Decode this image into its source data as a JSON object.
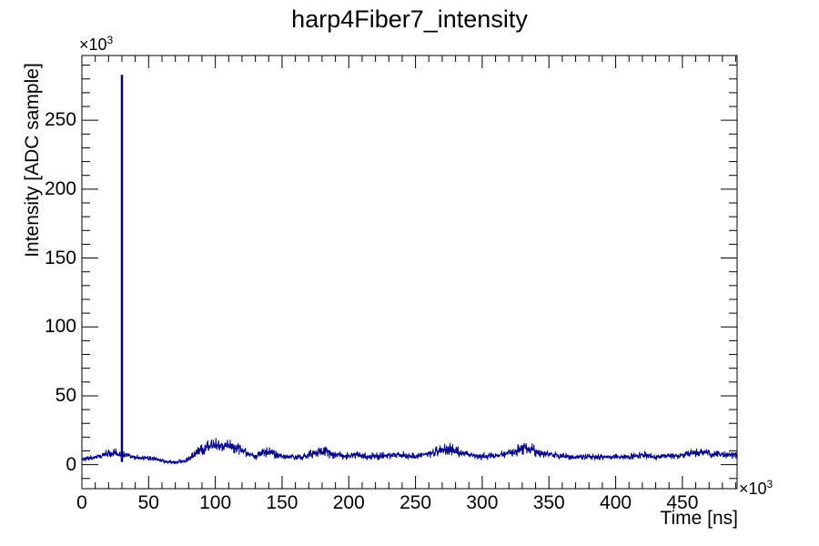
{
  "chart_data": {
    "type": "line",
    "title": "harp4Fiber7_intensity",
    "xlabel": "Time [ns]",
    "ylabel": "Intensity [ADC sample]",
    "axis_multiplier": {
      "base": "×10",
      "exp": "3"
    },
    "x_ticks": [
      0,
      50,
      100,
      150,
      200,
      250,
      300,
      350,
      400,
      450
    ],
    "y_ticks": [
      0,
      50,
      100,
      150,
      200,
      250
    ],
    "x_minor_step": 10,
    "y_minor_step": 10,
    "xlim": [
      0,
      491
    ],
    "ylim": [
      -17.4,
      297
    ],
    "grid": false,
    "legend": false,
    "line_color": "#00008b",
    "frame_color": "#000000",
    "background_color": "#ffffff",
    "series": [
      {
        "name": "harp4Fiber7_intensity",
        "spike": {
          "x": 30,
          "y": 283
        },
        "envelope_x": [
          0,
          10,
          15,
          20,
          25,
          28,
          32,
          38,
          45,
          55,
          62,
          70,
          78,
          85,
          92,
          100,
          110,
          118,
          125,
          130,
          136,
          141,
          147,
          155,
          163,
          170,
          176,
          182,
          188,
          196,
          205,
          213,
          222,
          232,
          240,
          248,
          256,
          263,
          270,
          277,
          284,
          291,
          300,
          310,
          318,
          326,
          333,
          340,
          348,
          357,
          368,
          380,
          392,
          404,
          415,
          422,
          430,
          438,
          448,
          458,
          466,
          474,
          482,
          491
        ],
        "envelope_lo": [
          2,
          3,
          4,
          5,
          5,
          5,
          4,
          3,
          3,
          2,
          1,
          0.5,
          1.5,
          4,
          7,
          8,
          8,
          7,
          4,
          3,
          5,
          5,
          3,
          3,
          3,
          4,
          5,
          5,
          4,
          3,
          4,
          3,
          3,
          4,
          4,
          3,
          4,
          5,
          6,
          6,
          5,
          4,
          3,
          4,
          5,
          6,
          7,
          5,
          4,
          3,
          3,
          3,
          3,
          3,
          4,
          4,
          3,
          4,
          4,
          5,
          5,
          4,
          4,
          4
        ],
        "envelope_hi": [
          6,
          8,
          9,
          12,
          12,
          11,
          10,
          8,
          7,
          6,
          4,
          3,
          5,
          11,
          17,
          20,
          19,
          17,
          10,
          8,
          13,
          13,
          9,
          8,
          8,
          10,
          14,
          15,
          12,
          9,
          10,
          9,
          9,
          10,
          10,
          9,
          10,
          12,
          15,
          16,
          13,
          10,
          9,
          9,
          11,
          15,
          18,
          14,
          11,
          9,
          8,
          8,
          8,
          8,
          9,
          10,
          8,
          9,
          10,
          12,
          13,
          11,
          10,
          11
        ]
      }
    ]
  }
}
